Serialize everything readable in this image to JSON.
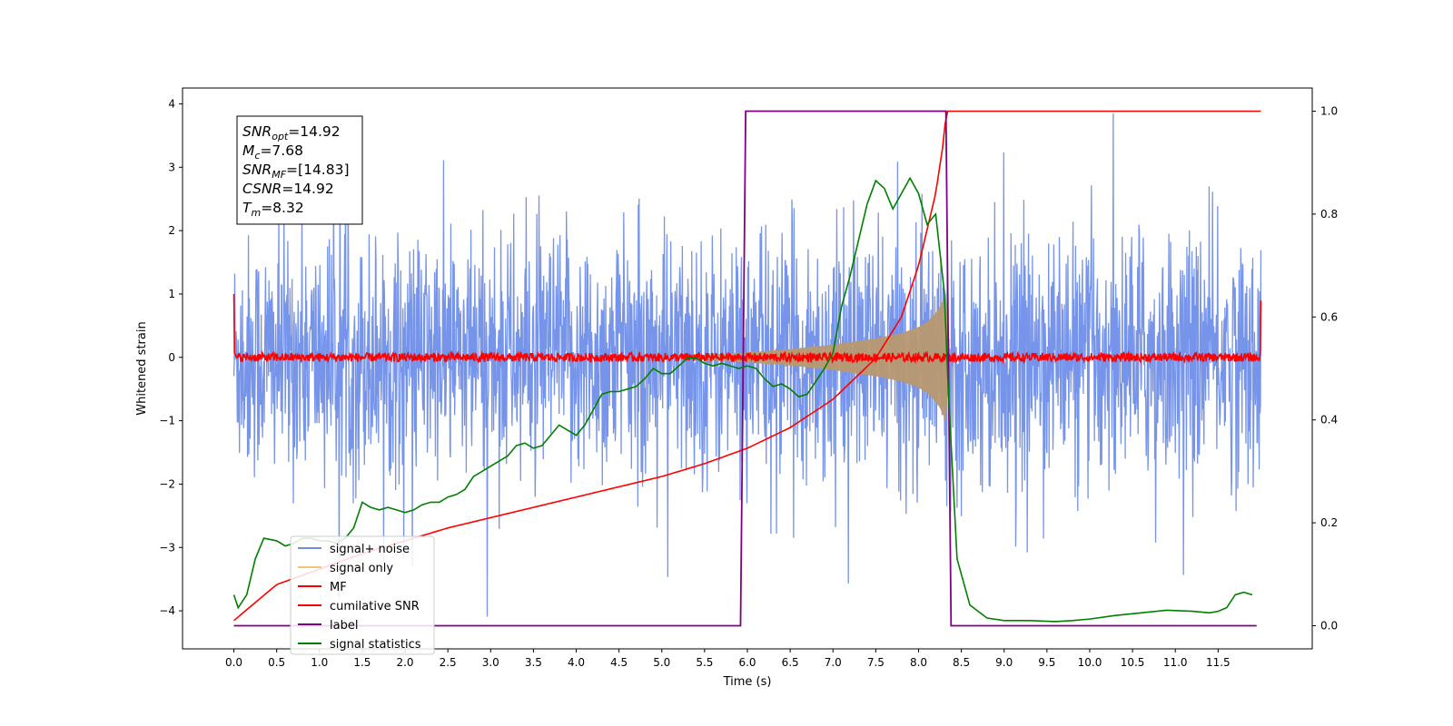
{
  "chart_data": {
    "type": "line",
    "xlabel": "Time (s)",
    "ylabel": "Whitened strain",
    "xlim": [
      -0.6,
      12.6
    ],
    "ylim": [
      -4.6,
      4.25
    ],
    "y2lim": [
      -0.045,
      1.045
    ],
    "xticks": [
      0.0,
      0.5,
      1.0,
      1.5,
      2.0,
      2.5,
      3.0,
      3.5,
      4.0,
      4.5,
      5.0,
      5.5,
      6.0,
      6.5,
      7.0,
      7.5,
      8.0,
      8.5,
      9.0,
      9.5,
      10.0,
      10.5,
      11.0,
      11.5
    ],
    "xtick_labels": [
      "0.0",
      "0.5",
      "1.0",
      "1.5",
      "2.0",
      "2.5",
      "3.0",
      "3.5",
      "4.0",
      "4.5",
      "5.0",
      "5.5",
      "6.0",
      "6.5",
      "7.0",
      "7.5",
      "8.0",
      "8.5",
      "9.0",
      "9.5",
      "10.0",
      "10.5",
      "11.0",
      "11.5"
    ],
    "yticks": [
      -4,
      -3,
      -2,
      -1,
      0,
      1,
      2,
      3,
      4
    ],
    "ytick_labels": [
      "−4",
      "−3",
      "−2",
      "−1",
      "0",
      "1",
      "2",
      "3",
      "4"
    ],
    "y2ticks": [
      0.0,
      0.2,
      0.4,
      0.6,
      0.8,
      1.0
    ],
    "y2tick_labels": [
      "0.0",
      "0.2",
      "0.4",
      "0.6",
      "0.8",
      "1.0"
    ],
    "grid": false,
    "legend_placement": "lower-left",
    "annotation": {
      "lines": [
        {
          "base": "SNR",
          "sub": "opt",
          "value": "=14.92"
        },
        {
          "base": "M",
          "sub": "c",
          "value": "=7.68"
        },
        {
          "base": "SNR",
          "sub": "MF",
          "value": "=[14.83]"
        },
        {
          "base": "CSNR",
          "sub": "",
          "value": "=14.92"
        },
        {
          "base": "T",
          "sub": "m",
          "value": "=8.32"
        }
      ]
    },
    "series": [
      {
        "name": "signal+ noise",
        "axis": "left",
        "color": "#6f8ee8",
        "style": "noise-band",
        "x_range": [
          0.0,
          12.0
        ],
        "noise_sigma": 0.95,
        "chirp_merger_time": 8.32
      },
      {
        "name": "signal only",
        "axis": "left",
        "color": "#f5c476",
        "style": "chirp-envelope",
        "envelope": {
          "x": [
            5.5,
            6.0,
            6.5,
            7.0,
            7.5,
            7.8,
            8.0,
            8.1,
            8.2,
            8.25,
            8.3,
            8.32,
            8.34,
            8.36
          ],
          "amp": [
            0.04,
            0.08,
            0.13,
            0.2,
            0.3,
            0.38,
            0.48,
            0.56,
            0.7,
            0.8,
            0.95,
            1.05,
            0.6,
            0.0
          ]
        }
      },
      {
        "name": "MF",
        "axis": "left",
        "color": "#ff0000",
        "style": "noisy-flat",
        "x_range": [
          0.0,
          12.0
        ],
        "start_value": 1.0,
        "end_value": 0.9,
        "noise_amp": 0.07
      },
      {
        "name": "cumilative SNR",
        "axis": "right",
        "color": "#ff0000",
        "x": [
          0.0,
          0.5,
          1.0,
          1.5,
          2.0,
          2.5,
          3.0,
          3.5,
          4.0,
          4.5,
          5.0,
          5.5,
          6.0,
          6.5,
          7.0,
          7.5,
          7.8,
          8.0,
          8.1,
          8.2,
          8.3,
          8.32,
          8.4,
          9.0,
          10.0,
          11.0,
          12.0
        ],
        "values": [
          0.01,
          0.08,
          0.11,
          0.14,
          0.165,
          0.19,
          0.21,
          0.23,
          0.25,
          0.27,
          0.29,
          0.315,
          0.345,
          0.385,
          0.44,
          0.52,
          0.6,
          0.7,
          0.77,
          0.84,
          0.95,
          1.0,
          1.0,
          1.0,
          1.0,
          1.0,
          1.0
        ]
      },
      {
        "name": "label",
        "axis": "right",
        "color": "#800080",
        "x": [
          0.0,
          5.92,
          5.98,
          8.32,
          8.38,
          11.95
        ],
        "values": [
          0.0,
          0.0,
          1.0,
          1.0,
          0.0,
          0.0
        ]
      },
      {
        "name": "signal statistics",
        "axis": "right",
        "color": "#008000",
        "x": [
          0.0,
          0.05,
          0.15,
          0.25,
          0.35,
          0.5,
          0.6,
          0.7,
          0.8,
          0.9,
          1.0,
          1.1,
          1.2,
          1.3,
          1.4,
          1.5,
          1.6,
          1.7,
          1.8,
          1.9,
          2.0,
          2.1,
          2.2,
          2.3,
          2.4,
          2.5,
          2.6,
          2.7,
          2.8,
          2.9,
          3.0,
          3.1,
          3.2,
          3.3,
          3.4,
          3.5,
          3.6,
          3.7,
          3.8,
          3.9,
          4.0,
          4.1,
          4.2,
          4.3,
          4.4,
          4.5,
          4.6,
          4.7,
          4.8,
          4.9,
          5.0,
          5.1,
          5.2,
          5.3,
          5.4,
          5.5,
          5.6,
          5.7,
          5.8,
          5.9,
          6.0,
          6.1,
          6.2,
          6.3,
          6.4,
          6.5,
          6.6,
          6.7,
          6.8,
          6.9,
          7.0,
          7.1,
          7.2,
          7.3,
          7.4,
          7.5,
          7.6,
          7.7,
          7.8,
          7.9,
          8.0,
          8.1,
          8.2,
          8.3,
          8.35,
          8.45,
          8.6,
          8.8,
          9.0,
          9.3,
          9.6,
          9.8,
          10.0,
          10.3,
          10.6,
          10.9,
          11.2,
          11.4,
          11.5,
          11.6,
          11.7,
          11.8,
          11.9
        ],
        "values": [
          0.06,
          0.035,
          0.06,
          0.13,
          0.17,
          0.165,
          0.155,
          0.16,
          0.17,
          0.17,
          0.165,
          0.165,
          0.16,
          0.17,
          0.19,
          0.24,
          0.23,
          0.225,
          0.23,
          0.225,
          0.22,
          0.225,
          0.235,
          0.24,
          0.24,
          0.25,
          0.255,
          0.265,
          0.29,
          0.3,
          0.31,
          0.32,
          0.33,
          0.35,
          0.355,
          0.345,
          0.35,
          0.37,
          0.39,
          0.38,
          0.37,
          0.39,
          0.42,
          0.45,
          0.455,
          0.455,
          0.46,
          0.465,
          0.48,
          0.5,
          0.49,
          0.49,
          0.505,
          0.52,
          0.52,
          0.51,
          0.505,
          0.51,
          0.505,
          0.5,
          0.505,
          0.5,
          0.48,
          0.465,
          0.47,
          0.46,
          0.445,
          0.45,
          0.475,
          0.5,
          0.53,
          0.62,
          0.68,
          0.75,
          0.82,
          0.865,
          0.85,
          0.81,
          0.84,
          0.87,
          0.84,
          0.78,
          0.8,
          0.65,
          0.45,
          0.13,
          0.04,
          0.015,
          0.01,
          0.01,
          0.008,
          0.01,
          0.013,
          0.02,
          0.025,
          0.03,
          0.028,
          0.025,
          0.028,
          0.035,
          0.06,
          0.065,
          0.06
        ]
      }
    ]
  }
}
